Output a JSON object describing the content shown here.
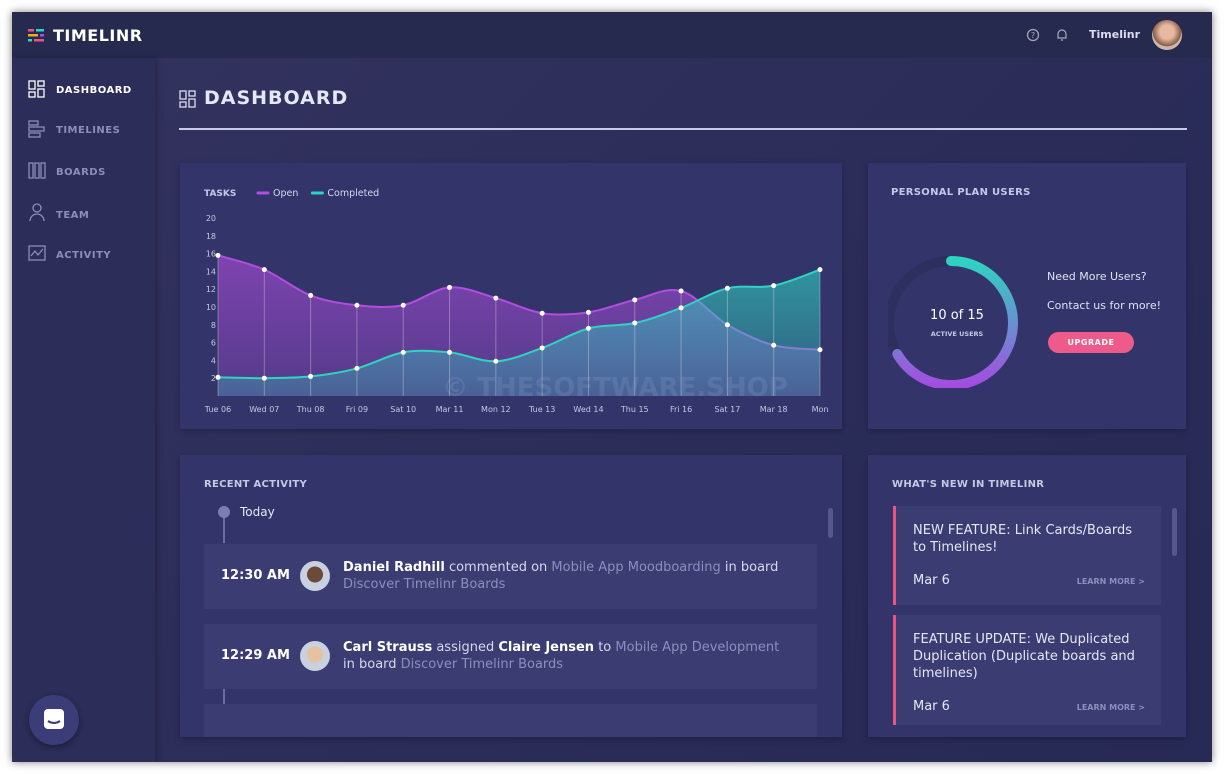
{
  "app": {
    "brand": "TIMELINR",
    "user": "Timelinr"
  },
  "sidebar": {
    "items": [
      "DASHBOARD",
      "TIMELINES",
      "BOARDS",
      "TEAM",
      "ACTIVITY"
    ]
  },
  "page_title": "DASHBOARD",
  "chart_data": {
    "type": "area",
    "title": "TASKS",
    "categories": [
      "Tue 06",
      "Wed 07",
      "Thu 08",
      "Fri 09",
      "Sat 10",
      "Mar 11",
      "Mon 12",
      "Tue 13",
      "Wed 14",
      "Thu 15",
      "Fri 16",
      "Sat 17",
      "Mar 18",
      "Mon"
    ],
    "series": [
      {
        "name": "Open",
        "color": "#b14de0",
        "values": [
          15.8,
          14.2,
          11.3,
          10.2,
          10.2,
          12.2,
          11,
          9.3,
          9.4,
          10.8,
          11.8,
          8,
          5.7,
          5.2
        ]
      },
      {
        "name": "Completed",
        "color": "#2ed3c1",
        "values": [
          2.1,
          2,
          2.2,
          3.1,
          4.9,
          4.9,
          3.9,
          5.4,
          7.6,
          8.2,
          9.9,
          12.1,
          12.4,
          14.2
        ]
      }
    ],
    "ylim": [
      0,
      20
    ],
    "yticks": [
      2,
      4,
      6,
      8,
      10,
      12,
      14,
      16,
      18,
      20
    ],
    "grid": false
  },
  "watermark": "© THESOFTWARE.SHOP",
  "plan": {
    "title": "PERSONAL PLAN USERS",
    "value": 10,
    "max": 15,
    "value_label": "10 of 15",
    "caption": "ACTIVE USERS",
    "prompt": "Need More Users?",
    "contact": "Contact us for more!",
    "button": "UPGRADE"
  },
  "activity": {
    "title": "RECENT ACTIVITY",
    "day": "Today",
    "items": [
      {
        "time": "12:30 AM",
        "parts": [
          {
            "text": "Daniel Radhill",
            "style": "bold"
          },
          {
            "text": "commented on",
            "style": "plain"
          },
          {
            "text": "Mobile App Moodboarding",
            "style": "link"
          },
          {
            "text": "in board",
            "style": "plain"
          },
          {
            "text": "Discover Timelinr Boards",
            "style": "link"
          }
        ]
      },
      {
        "time": "12:29 AM",
        "parts": [
          {
            "text": "Carl Strauss",
            "style": "bold"
          },
          {
            "text": "assigned",
            "style": "plain"
          },
          {
            "text": "Claire Jensen",
            "style": "bold"
          },
          {
            "text": "to",
            "style": "plain"
          },
          {
            "text": "Mobile App Development",
            "style": "link"
          },
          {
            "text": "in board",
            "style": "plain"
          },
          {
            "text": "Discover Timelinr Boards",
            "style": "link"
          }
        ]
      }
    ]
  },
  "news": {
    "title": "WHAT'S NEW IN TIMELINR",
    "items": [
      {
        "title": "NEW FEATURE: Link Cards/Boards to Timelines!",
        "date": "Mar 6",
        "link": "LEARN MORE >"
      },
      {
        "title": "FEATURE UPDATE: We Duplicated Duplication (Duplicate boards and timelines)",
        "date": "Mar 6",
        "link": "LEARN MORE >"
      }
    ]
  }
}
